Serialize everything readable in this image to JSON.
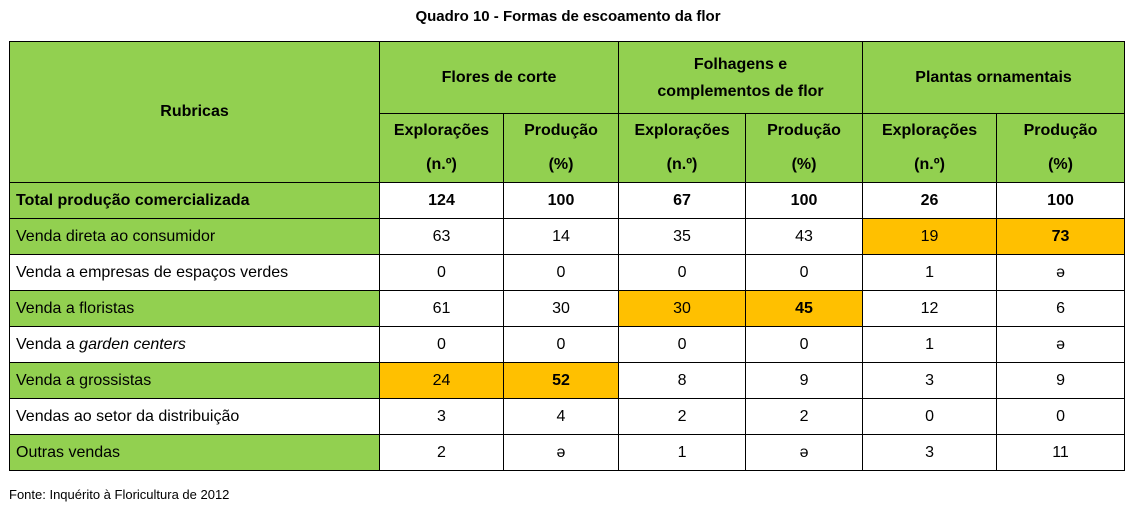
{
  "title": "Quadro 10 - Formas de escoamento da flor",
  "header": {
    "rubricas": "Rubricas",
    "groups": [
      "Flores de corte",
      "Folhagens e complementos de flor",
      "Plantas ornamentais"
    ],
    "sub": [
      {
        "line1": "Explorações",
        "line2": "(n.º)"
      },
      {
        "line1": "Produção",
        "line2": "(%)"
      }
    ]
  },
  "rows": [
    {
      "label": "Total produção comercializada",
      "values": [
        "124",
        "100",
        "67",
        "100",
        "26",
        "100"
      ]
    },
    {
      "label": "Venda direta ao consumidor",
      "values": [
        "63",
        "14",
        "35",
        "43",
        "19",
        "73"
      ]
    },
    {
      "label": "Venda a empresas de espaços verdes",
      "values": [
        "0",
        "0",
        "0",
        "0",
        "1",
        "ə"
      ]
    },
    {
      "label": "Venda a floristas",
      "values": [
        "61",
        "30",
        "30",
        "45",
        "12",
        "6"
      ]
    },
    {
      "label_prefix": "Venda a ",
      "label_italic": "garden centers",
      "values": [
        "0",
        "0",
        "0",
        "0",
        "1",
        "ə"
      ]
    },
    {
      "label": "Venda a grossistas",
      "values": [
        "24",
        "52",
        "8",
        "9",
        "3",
        "9"
      ]
    },
    {
      "label": "Vendas ao setor da distribuição",
      "values": [
        "3",
        "4",
        "2",
        "2",
        "0",
        "0"
      ]
    },
    {
      "label": "Outras vendas",
      "values": [
        "2",
        "ə",
        "1",
        "ə",
        "3",
        "11"
      ]
    }
  ],
  "highlight_colors": {
    "header": "#92d050",
    "highlight": "#ffc000"
  },
  "source": "Fonte: Inquérito à Floricultura de 2012"
}
